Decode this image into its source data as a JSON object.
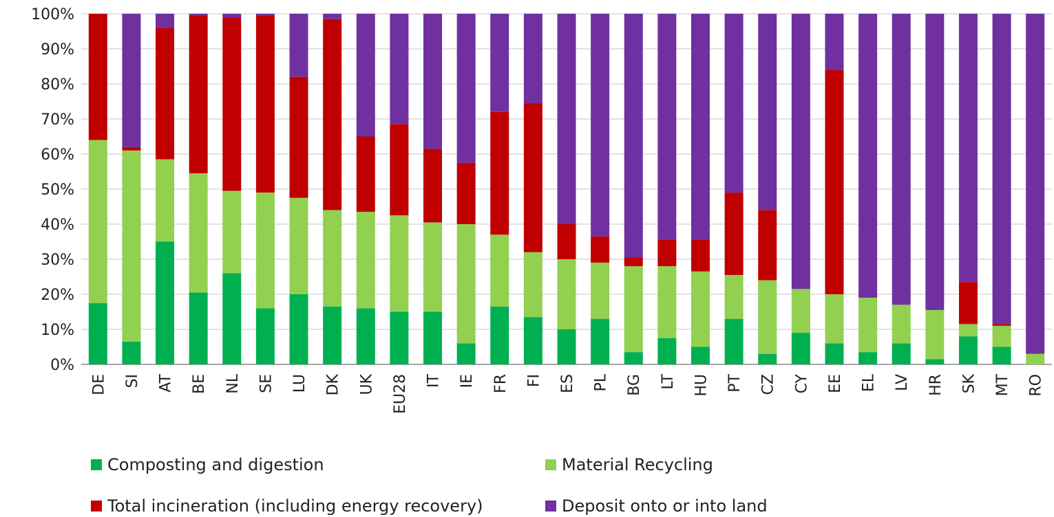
{
  "chart_data": {
    "type": "bar",
    "stacked": true,
    "categories": [
      "DE",
      "SI",
      "AT",
      "BE",
      "NL",
      "SE",
      "LU",
      "DK",
      "UK",
      "EU28",
      "IT",
      "IE",
      "FR",
      "FI",
      "ES",
      "PL",
      "BG",
      "LT",
      "HU",
      "PT",
      "CZ",
      "CY",
      "EE",
      "EL",
      "LV",
      "HR",
      "SK",
      "MT",
      "RO"
    ],
    "ylim": [
      0,
      100
    ],
    "yticks": [
      "0%",
      "10%",
      "20%",
      "30%",
      "40%",
      "50%",
      "60%",
      "70%",
      "80%",
      "90%",
      "100%"
    ],
    "grid": true,
    "legend_position": "bottom",
    "series": [
      {
        "name": "Composting and digestion",
        "color": "#00b050",
        "values": [
          17.5,
          6.5,
          35,
          20.5,
          26,
          16,
          20,
          16.5,
          16,
          15,
          15,
          6,
          16.5,
          13.5,
          10,
          13,
          3.5,
          7.5,
          5,
          13,
          3,
          9,
          6,
          3.5,
          6,
          1.5,
          8,
          5,
          0
        ]
      },
      {
        "name": "Material Recycling",
        "color": "#92d050",
        "values": [
          46.5,
          54.5,
          23.5,
          34,
          23.5,
          33,
          27.5,
          27.5,
          27.5,
          27.5,
          25.5,
          34,
          20.5,
          18.5,
          20,
          16,
          24.5,
          20.5,
          21.5,
          12.5,
          21,
          12.5,
          14,
          15.5,
          11,
          14,
          3.5,
          6,
          3
        ]
      },
      {
        "name": "Total incineration (including energy recovery)",
        "color": "#c00000",
        "values": [
          36,
          1,
          37.5,
          45,
          49.5,
          50.5,
          34.5,
          54.5,
          21.5,
          26,
          21,
          17.5,
          35,
          42.5,
          10,
          7.5,
          2.5,
          7.5,
          9,
          23.5,
          20,
          0,
          64,
          0,
          0,
          0,
          12,
          0.5,
          0
        ]
      },
      {
        "name": "Deposit onto or into land",
        "color": "#7030a0",
        "values": [
          0,
          38,
          4,
          0.5,
          1,
          0.5,
          18,
          1.5,
          35,
          31.5,
          38.5,
          42.5,
          28,
          25.5,
          60,
          63.5,
          69.5,
          64.5,
          64.5,
          51,
          56,
          78.5,
          16,
          81,
          83,
          84.5,
          76.5,
          88.5,
          97
        ]
      }
    ]
  }
}
